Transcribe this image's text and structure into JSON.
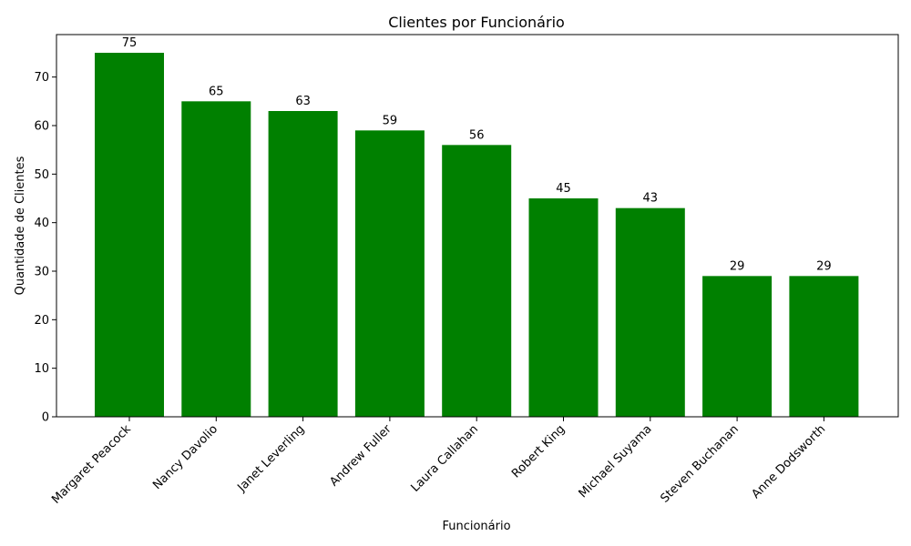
{
  "chart_data": {
    "type": "bar",
    "title": "Clientes por Funcionário",
    "xlabel": "Funcionário",
    "ylabel": "Quantidade de Clientes",
    "categories": [
      "Margaret Peacock",
      "Nancy Davolio",
      "Janet Leverling",
      "Andrew Fuller",
      "Laura Callahan",
      "Robert King",
      "Michael Suyama",
      "Steven Buchanan",
      "Anne Dodsworth"
    ],
    "values": [
      75,
      65,
      63,
      59,
      56,
      45,
      43,
      29,
      29
    ],
    "ylim": [
      0,
      78.75
    ],
    "yticks": [
      0,
      10,
      20,
      30,
      40,
      50,
      60,
      70
    ],
    "grid": false,
    "legend": "none",
    "bar_color": "#008000",
    "data_labels": true
  }
}
